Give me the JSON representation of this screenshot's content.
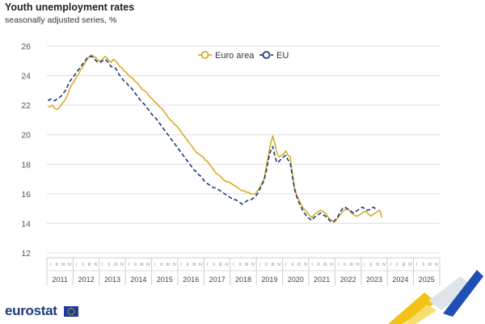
{
  "title": "Youth unemployment rates",
  "subtitle": "seasonally adjusted series, %",
  "logo": {
    "text": "eurostat"
  },
  "colors": {
    "euro_area": "#d4ac2b",
    "eu": "#1f3a7a",
    "grid": "#dddddd"
  },
  "chart_data": {
    "type": "line",
    "ylim": [
      12,
      26
    ],
    "yticks": [
      12,
      14,
      16,
      18,
      20,
      22,
      24,
      26
    ],
    "x_start": "2011-01",
    "x_frequency": "monthly",
    "quarter_labels": [
      "I",
      "II",
      "III",
      "IV"
    ],
    "years": [
      "2011",
      "2012",
      "2013",
      "2014",
      "2015",
      "2016",
      "2017",
      "2018",
      "2019",
      "2020",
      "2021",
      "2022",
      "2023",
      "2024",
      "2025"
    ],
    "legend": {
      "position": "top-center",
      "entries": [
        "Euro area",
        "EU"
      ]
    },
    "series": [
      {
        "name": "Euro area",
        "style": "solid",
        "values": [
          21.9,
          21.9,
          22.0,
          21.8,
          21.7,
          21.8,
          22.0,
          22.2,
          22.4,
          22.7,
          23.1,
          23.4,
          23.6,
          23.9,
          24.1,
          24.4,
          24.6,
          24.9,
          25.1,
          25.3,
          25.4,
          25.3,
          25.2,
          25.0,
          25.0,
          25.1,
          25.3,
          25.2,
          25.0,
          24.9,
          25.1,
          25.0,
          24.8,
          24.6,
          24.5,
          24.3,
          24.2,
          24.0,
          23.9,
          23.8,
          23.6,
          23.5,
          23.3,
          23.1,
          23.0,
          22.9,
          22.7,
          22.5,
          22.4,
          22.2,
          22.1,
          21.9,
          21.8,
          21.6,
          21.4,
          21.2,
          21.0,
          20.9,
          20.7,
          20.6,
          20.4,
          20.2,
          20.0,
          19.8,
          19.6,
          19.4,
          19.2,
          19.0,
          18.8,
          18.7,
          18.6,
          18.5,
          18.3,
          18.2,
          18.0,
          17.8,
          17.6,
          17.4,
          17.3,
          17.2,
          17.0,
          16.9,
          16.8,
          16.8,
          16.7,
          16.6,
          16.5,
          16.4,
          16.3,
          16.2,
          16.2,
          16.1,
          16.1,
          16.0,
          16.0,
          16.0,
          16.2,
          16.4,
          16.7,
          17.0,
          17.8,
          18.6,
          19.4,
          19.9,
          19.4,
          18.7,
          18.5,
          18.6,
          18.7,
          18.9,
          18.6,
          18.5,
          17.4,
          16.4,
          15.9,
          15.6,
          15.3,
          15.0,
          14.9,
          14.7,
          14.5,
          14.4,
          14.6,
          14.7,
          14.8,
          14.9,
          14.8,
          14.7,
          14.5,
          14.3,
          14.2,
          14.1,
          14.2,
          14.4,
          14.6,
          14.8,
          14.9,
          15.0,
          14.9,
          14.7,
          14.6,
          14.5,
          14.5,
          14.6,
          14.7,
          14.8,
          14.8,
          14.6,
          14.5,
          14.6,
          14.7,
          14.8,
          14.9,
          14.4
        ]
      },
      {
        "name": "EU",
        "style": "dashed",
        "values": [
          22.3,
          22.4,
          22.4,
          22.3,
          22.4,
          22.5,
          22.6,
          22.8,
          23.0,
          23.3,
          23.6,
          23.8,
          24.0,
          24.2,
          24.4,
          24.6,
          24.8,
          25.0,
          25.2,
          25.3,
          25.3,
          25.2,
          25.0,
          24.9,
          24.9,
          25.0,
          25.1,
          25.0,
          24.8,
          24.6,
          24.6,
          24.5,
          24.2,
          24.0,
          23.8,
          23.6,
          23.5,
          23.3,
          23.2,
          23.0,
          22.8,
          22.6,
          22.4,
          22.2,
          22.1,
          21.9,
          21.7,
          21.5,
          21.3,
          21.2,
          21.0,
          20.8,
          20.6,
          20.4,
          20.2,
          20.0,
          19.8,
          19.6,
          19.4,
          19.2,
          19.0,
          18.8,
          18.6,
          18.4,
          18.2,
          18.0,
          17.8,
          17.6,
          17.5,
          17.3,
          17.2,
          17.0,
          16.8,
          16.7,
          16.6,
          16.5,
          16.4,
          16.4,
          16.3,
          16.2,
          16.1,
          16.0,
          15.9,
          15.8,
          15.7,
          15.6,
          15.6,
          15.5,
          15.4,
          15.3,
          15.4,
          15.5,
          15.6,
          15.6,
          15.7,
          15.8,
          16.0,
          16.3,
          16.6,
          16.9,
          17.5,
          18.3,
          18.9,
          19.2,
          18.5,
          18.1,
          18.2,
          18.4,
          18.5,
          18.6,
          18.3,
          18.1,
          17.2,
          16.3,
          15.8,
          15.4,
          15.1,
          14.8,
          14.6,
          14.4,
          14.3,
          14.2,
          14.4,
          14.5,
          14.6,
          14.7,
          14.6,
          14.5,
          14.4,
          14.2,
          14.1,
          14.1,
          14.3,
          14.5,
          14.8,
          15.0,
          15.1,
          15.0,
          14.9,
          14.8,
          14.7,
          14.8,
          14.9,
          15.0,
          15.1,
          15.0,
          14.9,
          14.9,
          15.0,
          15.1,
          15.0,
          14.9
        ]
      }
    ]
  }
}
